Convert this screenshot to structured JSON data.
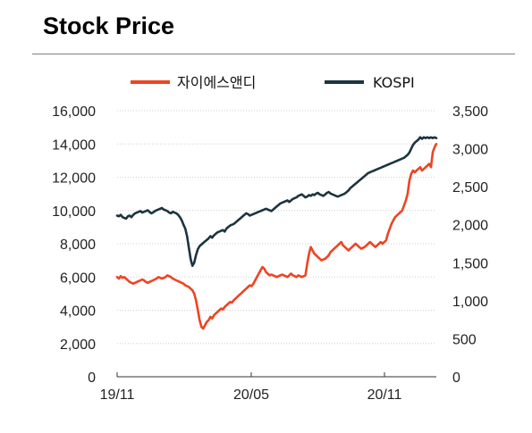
{
  "header": {
    "title": "Stock Price"
  },
  "chart_data": {
    "type": "line",
    "title": "Stock Price",
    "x_ticks": [
      "19/11",
      "20/05",
      "20/11"
    ],
    "x_range": [
      "2019-11",
      "2021-01"
    ],
    "y_left": {
      "ticks": [
        "0",
        "2,000",
        "4,000",
        "6,000",
        "8,000",
        "10,000",
        "12,000",
        "14,000",
        "16,000"
      ],
      "range": [
        0,
        16000
      ]
    },
    "y_right": {
      "ticks": [
        "0",
        "500",
        "1,000",
        "1,500",
        "2,000",
        "2,500",
        "3,000",
        "3,500"
      ],
      "range": [
        0,
        3500
      ]
    },
    "grid": true,
    "legend_position": "top",
    "series": [
      {
        "name": "자이에스앤디",
        "axis": "left",
        "color": "#ee4422",
        "x": [
          0,
          2,
          4,
          6,
          8,
          10,
          12,
          14,
          16,
          18,
          20,
          22,
          24,
          26,
          28,
          30,
          32,
          34,
          36,
          38,
          40,
          42,
          44,
          46,
          48,
          50,
          52,
          54,
          56,
          58,
          60,
          62,
          64,
          66,
          68,
          70,
          72,
          74,
          76,
          78,
          80,
          82,
          84,
          86,
          88,
          90,
          92,
          94,
          96,
          98,
          100,
          102,
          104,
          106,
          108,
          110,
          112,
          114,
          116,
          118,
          120,
          122,
          124,
          126,
          128,
          130,
          132,
          134,
          136,
          138,
          140,
          142,
          144,
          146,
          148,
          150,
          152,
          154,
          156,
          158,
          160,
          162,
          164,
          166,
          168,
          170,
          172,
          174,
          176,
          178,
          180,
          182,
          184,
          186,
          188,
          190,
          192,
          194,
          196,
          198,
          200,
          202,
          204,
          206,
          208,
          210,
          212,
          214,
          216,
          218,
          220,
          222,
          224,
          226,
          228,
          230,
          232,
          234,
          236,
          238,
          240,
          242,
          244,
          246,
          248,
          250,
          252,
          254,
          256,
          258,
          260,
          262,
          264,
          266,
          268,
          270,
          272,
          274,
          276,
          278,
          280,
          282,
          284,
          286,
          288,
          290,
          292,
          294,
          296,
          298,
          300,
          302,
          304,
          306,
          308,
          310,
          312,
          314,
          316,
          318,
          320,
          322,
          324,
          326,
          328,
          330,
          332,
          334,
          336,
          338,
          340,
          342,
          344,
          346,
          348,
          350,
          352,
          354,
          356
        ],
        "values": [
          6000,
          5900,
          6050,
          5950,
          6000,
          5900,
          5800,
          5700,
          5650,
          5600,
          5650,
          5700,
          5750,
          5800,
          5850,
          5800,
          5700,
          5650,
          5700,
          5750,
          5800,
          5850,
          5900,
          6000,
          5950,
          5900,
          5950,
          6000,
          6100,
          6050,
          6000,
          5900,
          5850,
          5800,
          5750,
          5700,
          5650,
          5600,
          5500,
          5450,
          5400,
          5300,
          5200,
          5000,
          4600,
          4000,
          3400,
          3000,
          2900,
          3100,
          3300,
          3400,
          3600,
          3500,
          3700,
          3800,
          3900,
          4000,
          4100,
          4050,
          4200,
          4300,
          4400,
          4500,
          4450,
          4600,
          4700,
          4800,
          4900,
          5000,
          5100,
          5200,
          5300,
          5400,
          5500,
          5450,
          5600,
          5800,
          6000,
          6200,
          6400,
          6600,
          6500,
          6300,
          6200,
          6100,
          6150,
          6100,
          6050,
          6000,
          6050,
          6100,
          6150,
          6100,
          6050,
          6000,
          6100,
          6200,
          6100,
          6050,
          6000,
          6100,
          6050,
          6000,
          6050,
          6100,
          6800,
          7400,
          7800,
          7600,
          7400,
          7300,
          7200,
          7100,
          7000,
          7050,
          7100,
          7200,
          7300,
          7500,
          7600,
          7700,
          7800,
          7900,
          8000,
          8100,
          7900,
          7800,
          7700,
          7600,
          7700,
          7800,
          7900,
          8000,
          7900,
          7800,
          7700,
          7750,
          7800,
          7900,
          8000,
          8100,
          8000,
          7900,
          7800,
          7900,
          8000,
          8100,
          8000,
          8100,
          8200,
          8600,
          8900,
          9200,
          9400,
          9600,
          9700,
          9800,
          9900,
          10000,
          10300,
          10600,
          11000,
          11800,
          12200,
          12400,
          12300,
          12400,
          12500,
          12600,
          12400,
          12500,
          12600,
          12700,
          12800,
          12600,
          13500,
          13800,
          14000
        ]
      },
      {
        "name": "KOSPI",
        "axis": "right",
        "color": "#1d3440",
        "x": [
          0,
          2,
          4,
          6,
          8,
          10,
          12,
          14,
          16,
          18,
          20,
          22,
          24,
          26,
          28,
          30,
          32,
          34,
          36,
          38,
          40,
          42,
          44,
          46,
          48,
          50,
          52,
          54,
          56,
          58,
          60,
          62,
          64,
          66,
          68,
          70,
          72,
          74,
          76,
          78,
          80,
          82,
          84,
          86,
          88,
          90,
          92,
          94,
          96,
          98,
          100,
          102,
          104,
          106,
          108,
          110,
          112,
          114,
          116,
          118,
          120,
          122,
          124,
          126,
          128,
          130,
          132,
          134,
          136,
          138,
          140,
          142,
          144,
          146,
          148,
          150,
          152,
          154,
          156,
          158,
          160,
          162,
          164,
          166,
          168,
          170,
          172,
          174,
          176,
          178,
          180,
          182,
          184,
          186,
          188,
          190,
          192,
          194,
          196,
          198,
          200,
          202,
          204,
          206,
          208,
          210,
          212,
          214,
          216,
          218,
          220,
          222,
          224,
          226,
          228,
          230,
          232,
          234,
          236,
          238,
          240,
          242,
          244,
          246,
          248,
          250,
          252,
          254,
          256,
          258,
          260,
          262,
          264,
          266,
          268,
          270,
          272,
          274,
          276,
          278,
          280,
          282,
          284,
          286,
          288,
          290,
          292,
          294,
          296,
          298,
          300,
          302,
          304,
          306,
          308,
          310,
          312,
          314,
          316,
          318,
          320,
          322,
          324,
          326,
          328,
          330,
          332,
          334,
          336,
          338,
          340,
          342,
          344,
          346,
          348,
          350,
          352,
          354,
          356
        ],
        "values": [
          2120,
          2110,
          2130,
          2100,
          2090,
          2080,
          2110,
          2120,
          2100,
          2130,
          2150,
          2160,
          2170,
          2180,
          2160,
          2170,
          2180,
          2190,
          2170,
          2150,
          2160,
          2180,
          2190,
          2200,
          2210,
          2220,
          2200,
          2190,
          2180,
          2160,
          2150,
          2170,
          2160,
          2150,
          2130,
          2100,
          2060,
          2000,
          1950,
          1850,
          1700,
          1550,
          1460,
          1500,
          1600,
          1680,
          1720,
          1740,
          1760,
          1780,
          1800,
          1820,
          1850,
          1830,
          1860,
          1880,
          1900,
          1910,
          1920,
          1930,
          1910,
          1950,
          1970,
          1990,
          2000,
          2010,
          2030,
          2050,
          2070,
          2090,
          2110,
          2130,
          2150,
          2140,
          2120,
          2130,
          2140,
          2150,
          2160,
          2170,
          2180,
          2190,
          2200,
          2210,
          2200,
          2190,
          2180,
          2200,
          2220,
          2240,
          2260,
          2280,
          2290,
          2300,
          2310,
          2320,
          2300,
          2320,
          2340,
          2350,
          2360,
          2380,
          2390,
          2400,
          2380,
          2360,
          2370,
          2390,
          2380,
          2400,
          2390,
          2410,
          2420,
          2400,
          2390,
          2380,
          2400,
          2420,
          2430,
          2410,
          2400,
          2390,
          2380,
          2370,
          2380,
          2390,
          2400,
          2410,
          2430,
          2450,
          2480,
          2500,
          2520,
          2540,
          2560,
          2580,
          2600,
          2620,
          2640,
          2660,
          2680,
          2690,
          2700,
          2710,
          2720,
          2730,
          2740,
          2750,
          2760,
          2770,
          2780,
          2790,
          2800,
          2810,
          2820,
          2830,
          2840,
          2850,
          2860,
          2870,
          2880,
          2900,
          2920,
          2950,
          3000,
          3050,
          3080,
          3100,
          3120,
          3150,
          3130,
          3150,
          3140,
          3150,
          3140,
          3150,
          3140,
          3150,
          3140
        ]
      }
    ]
  }
}
